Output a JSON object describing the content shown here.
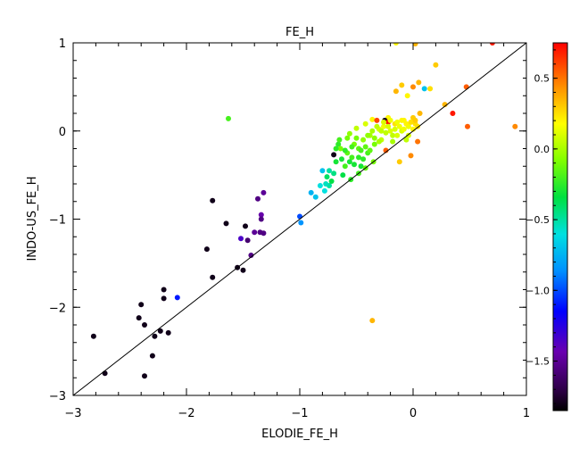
{
  "chart_data": {
    "type": "scatter",
    "title": "FE_H",
    "xlabel": "ELODIE_FE_H",
    "ylabel": "INDO-US_FE_H",
    "xlim": [
      -3,
      1
    ],
    "ylim": [
      -3,
      1
    ],
    "x_ticks": [
      -3,
      -2,
      -1,
      0,
      1
    ],
    "y_ticks": [
      -3,
      -2,
      -1,
      0,
      1
    ],
    "x_tick_labels": [
      "−3",
      "−2",
      "−1",
      "0",
      "1"
    ],
    "y_tick_labels": [
      "−3",
      "−2",
      "−1",
      "0",
      "1"
    ],
    "reference_line": {
      "x": [
        -3,
        1
      ],
      "y": [
        -3,
        1
      ]
    },
    "colorbar": {
      "range": [
        -1.85,
        0.75
      ],
      "ticks": [
        0.5,
        0.0,
        -0.5,
        -1.0,
        -1.5
      ],
      "tick_labels": [
        "0.5",
        "0.0",
        "−0.5",
        "−1.0",
        "−1.5"
      ],
      "colormap": "rainbow-black"
    },
    "points": [
      [
        -2.82,
        -2.33,
        -1.8
      ],
      [
        -2.72,
        -2.75,
        -1.8
      ],
      [
        -2.42,
        -2.12,
        -1.8
      ],
      [
        -2.4,
        -1.97,
        -1.8
      ],
      [
        -2.37,
        -2.2,
        -1.8
      ],
      [
        -2.37,
        -2.78,
        -1.8
      ],
      [
        -2.3,
        -2.55,
        -1.8
      ],
      [
        -2.28,
        -2.33,
        -1.8
      ],
      [
        -2.23,
        -2.27,
        -1.8
      ],
      [
        -2.2,
        -1.8,
        -1.8
      ],
      [
        -2.2,
        -1.9,
        -1.8
      ],
      [
        -2.16,
        -2.29,
        -1.8
      ],
      [
        -2.08,
        -1.89,
        -1.1
      ],
      [
        -1.82,
        -1.34,
        -1.8
      ],
      [
        -1.77,
        -0.79,
        -1.8
      ],
      [
        -1.77,
        -1.66,
        -1.8
      ],
      [
        -1.65,
        -1.05,
        -1.8
      ],
      [
        -1.55,
        -1.55,
        -1.8
      ],
      [
        -1.52,
        -1.22,
        -1.35
      ],
      [
        -1.5,
        -1.58,
        -1.8
      ],
      [
        -1.48,
        -1.08,
        -1.8
      ],
      [
        -1.46,
        -1.24,
        -1.6
      ],
      [
        -1.43,
        -1.41,
        -1.55
      ],
      [
        -1.4,
        -1.15,
        -1.5
      ],
      [
        -1.37,
        -0.77,
        -1.55
      ],
      [
        -1.35,
        -1.15,
        -1.55
      ],
      [
        -1.34,
        -0.95,
        -1.45
      ],
      [
        -1.34,
        -1.0,
        -1.55
      ],
      [
        -1.32,
        -0.7,
        -1.5
      ],
      [
        -1.32,
        -1.16,
        -1.55
      ],
      [
        -1.0,
        -0.97,
        -1.0
      ],
      [
        -0.99,
        -1.04,
        -0.85
      ],
      [
        -1.63,
        0.14,
        -0.2
      ],
      [
        -0.8,
        -0.45,
        -0.7
      ],
      [
        -0.78,
        -0.68,
        -0.6
      ],
      [
        -0.76,
        -0.52,
        -0.4
      ],
      [
        -0.74,
        -0.62,
        -0.5
      ],
      [
        -0.72,
        -0.57,
        -0.35
      ],
      [
        -0.7,
        -0.27,
        -1.8
      ],
      [
        -0.68,
        -0.35,
        -0.3
      ],
      [
        -0.66,
        -0.15,
        -0.25
      ],
      [
        -0.64,
        -0.2,
        -0.1
      ],
      [
        -0.62,
        -0.5,
        -0.35
      ],
      [
        -0.6,
        -0.4,
        -0.2
      ],
      [
        -0.58,
        -0.25,
        -0.15
      ],
      [
        -0.56,
        -0.03,
        -0.05
      ],
      [
        -0.54,
        -0.3,
        -0.2
      ],
      [
        -0.52,
        -0.15,
        -0.1
      ],
      [
        -0.5,
        0.03,
        0.05
      ],
      [
        -0.48,
        -0.2,
        -0.15
      ],
      [
        -0.46,
        -0.4,
        -0.3
      ],
      [
        -0.44,
        -0.1,
        -0.05
      ],
      [
        -0.42,
        0.08,
        0.1
      ],
      [
        -0.4,
        -0.25,
        -0.2
      ],
      [
        -0.38,
        -0.05,
        0.0
      ],
      [
        -0.36,
        0.13,
        0.2
      ],
      [
        -0.34,
        -0.15,
        -0.1
      ],
      [
        -0.32,
        0.12,
        0.6
      ],
      [
        -0.3,
        0.02,
        0.1
      ],
      [
        -0.28,
        -0.1,
        0.05
      ],
      [
        -0.26,
        0.05,
        0.15
      ],
      [
        -0.24,
        -0.22,
        0.55
      ],
      [
        -0.22,
        0.15,
        0.2
      ],
      [
        -0.2,
        0.0,
        0.1
      ],
      [
        -0.18,
        -0.05,
        0.05
      ],
      [
        -0.16,
        0.08,
        0.25
      ],
      [
        -0.14,
        0.1,
        0.15
      ],
      [
        -0.12,
        -0.35,
        0.3
      ],
      [
        -0.1,
        0.0,
        0.1
      ],
      [
        -0.08,
        0.12,
        0.2
      ],
      [
        -0.06,
        -0.1,
        0.05
      ],
      [
        -0.04,
        0.05,
        0.15
      ],
      [
        -0.02,
        -0.28,
        0.45
      ],
      [
        0.0,
        0.15,
        0.3
      ],
      [
        0.02,
        0.08,
        0.25
      ],
      [
        0.04,
        -0.12,
        0.5
      ],
      [
        0.06,
        0.2,
        0.35
      ],
      [
        -0.25,
        0.12,
        -1.8
      ],
      [
        -0.22,
        0.1,
        0.7
      ],
      [
        -0.15,
        0.45,
        0.35
      ],
      [
        -0.1,
        0.52,
        0.3
      ],
      [
        -0.05,
        0.4,
        0.2
      ],
      [
        0.0,
        0.5,
        0.45
      ],
      [
        0.05,
        0.55,
        0.35
      ],
      [
        0.1,
        0.48,
        -0.7
      ],
      [
        0.15,
        0.48,
        0.25
      ],
      [
        0.2,
        0.75,
        0.3
      ],
      [
        0.28,
        0.3,
        0.35
      ],
      [
        0.35,
        0.2,
        0.7
      ],
      [
        0.47,
        0.5,
        0.55
      ],
      [
        0.48,
        0.05,
        0.55
      ],
      [
        0.7,
        1.0,
        0.7
      ],
      [
        0.9,
        0.05,
        0.45
      ],
      [
        -0.36,
        -2.15,
        0.35
      ],
      [
        -0.15,
        1.0,
        0.2
      ],
      [
        0.02,
        0.99,
        0.35
      ],
      [
        -0.9,
        -0.7,
        -0.75
      ],
      [
        -0.86,
        -0.75,
        -0.7
      ],
      [
        -0.82,
        -0.62,
        -0.6
      ],
      [
        -0.77,
        -0.6,
        -0.55
      ],
      [
        -0.74,
        -0.45,
        -0.5
      ],
      [
        -0.7,
        -0.48,
        -0.45
      ],
      [
        -0.68,
        -0.2,
        -0.25
      ],
      [
        -0.65,
        -0.1,
        -0.2
      ],
      [
        -0.63,
        -0.32,
        -0.3
      ],
      [
        -0.6,
        -0.22,
        -0.25
      ],
      [
        -0.58,
        -0.08,
        -0.1
      ],
      [
        -0.56,
        -0.35,
        -0.3
      ],
      [
        -0.54,
        -0.18,
        -0.2
      ],
      [
        -0.52,
        -0.38,
        -0.3
      ],
      [
        -0.5,
        -0.08,
        -0.1
      ],
      [
        -0.48,
        -0.3,
        -0.25
      ],
      [
        -0.46,
        -0.22,
        -0.2
      ],
      [
        -0.44,
        -0.32,
        -0.25
      ],
      [
        -0.42,
        -0.18,
        -0.15
      ],
      [
        -0.4,
        -0.05,
        -0.05
      ],
      [
        -0.38,
        -0.22,
        -0.15
      ],
      [
        -0.36,
        0.0,
        0.0
      ],
      [
        -0.34,
        -0.08,
        -0.05
      ],
      [
        -0.32,
        0.05,
        0.05
      ],
      [
        -0.3,
        -0.12,
        0.0
      ],
      [
        -0.28,
        0.0,
        0.05
      ],
      [
        -0.26,
        0.1,
        0.1
      ],
      [
        -0.24,
        -0.02,
        0.05
      ],
      [
        -0.22,
        0.05,
        0.1
      ],
      [
        -0.2,
        0.12,
        0.15
      ],
      [
        -0.18,
        -0.12,
        0.0
      ],
      [
        -0.16,
        0.02,
        0.1
      ],
      [
        -0.14,
        -0.05,
        0.1
      ],
      [
        -0.12,
        0.05,
        0.15
      ],
      [
        -0.1,
        0.12,
        0.2
      ],
      [
        -0.08,
        0.02,
        0.15
      ],
      [
        -0.06,
        0.08,
        0.2
      ],
      [
        -0.04,
        -0.05,
        0.1
      ],
      [
        -0.02,
        0.1,
        0.25
      ],
      [
        0.0,
        0.02,
        0.2
      ],
      [
        0.02,
        0.12,
        0.3
      ],
      [
        0.04,
        0.05,
        0.25
      ],
      [
        -0.55,
        -0.55,
        -0.25
      ],
      [
        -0.48,
        -0.48,
        -0.2
      ],
      [
        -0.42,
        -0.42,
        -0.15
      ],
      [
        -0.35,
        -0.35,
        -0.1
      ]
    ]
  }
}
